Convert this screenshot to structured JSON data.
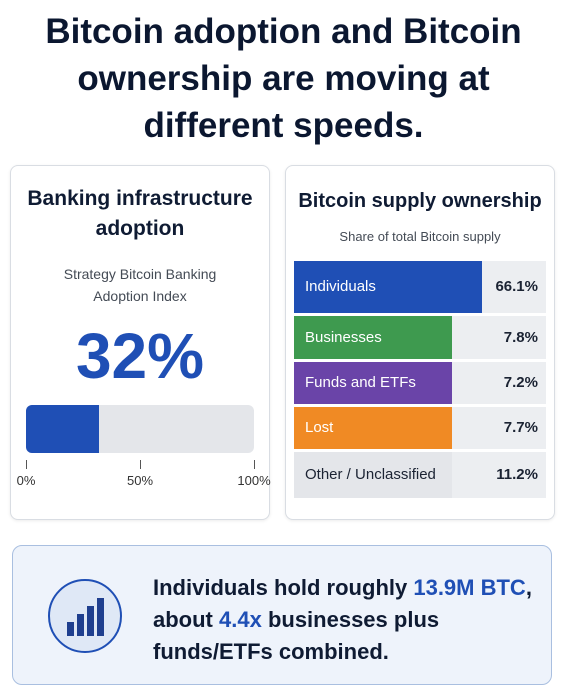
{
  "title": "Bitcoin adoption and Bitcoin ownership are moving at different speeds.",
  "chart_data": [
    {
      "type": "progress",
      "title": "Banking infrastructure adoption",
      "subtitle": "Strategy Bitcoin Banking Adoption Index",
      "value": 32,
      "value_label": "32%",
      "color": "#1f4fb5",
      "xlim": [
        0,
        100
      ],
      "xticks": [
        {
          "value": 0,
          "label": "0%"
        },
        {
          "value": 50,
          "label": "50%"
        },
        {
          "value": 100,
          "label": "100%"
        }
      ]
    },
    {
      "type": "rows",
      "title": "Bitcoin supply ownership",
      "subtitle": "Share of total Bitcoin supply",
      "categories": [
        "Individuals",
        "Businesses",
        "Funds and ETFs",
        "Lost",
        "Other / Unclassified"
      ],
      "values": [
        66.1,
        7.8,
        7.2,
        7.7,
        11.2
      ],
      "value_labels": [
        "66.1%",
        "7.8%",
        "7.2%",
        "7.7%",
        "11.2%"
      ],
      "colors": [
        "#1f4fb5",
        "#3e9a4f",
        "#6a44a8",
        "#f08a24",
        "#e4e6ea"
      ]
    }
  ],
  "callout": {
    "parts": [
      "Individuals hold roughly ",
      "13.9M BTC",
      ", about ",
      "4.4x",
      " businesses plus funds/ETFs combined."
    ]
  }
}
